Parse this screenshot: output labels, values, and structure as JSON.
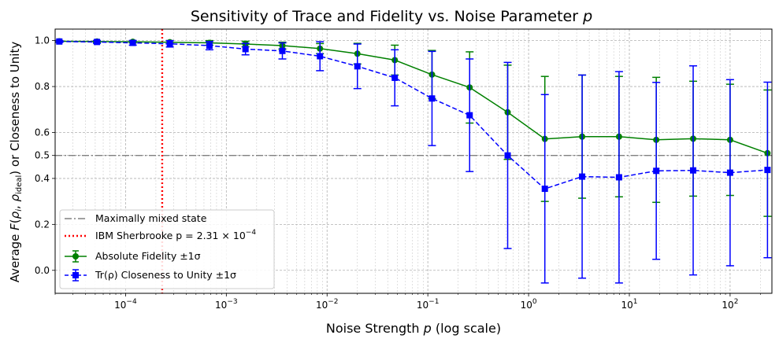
{
  "chart_data": {
    "type": "line",
    "title": "Sensitivity of Trace and Fidelity vs. Noise Parameter p",
    "xlabel": "Noise Strength p (log scale)",
    "ylabel": "Average F(ρi, ρideal) or Closeness to Unity",
    "x_scale": "log",
    "xlim": [
      2e-05,
      260
    ],
    "ylim": [
      -0.1,
      1.05
    ],
    "grid": true,
    "legend_position": "lower-left",
    "x_ticks": [
      {
        "value": 0.0001,
        "base": "10",
        "exp": "−4"
      },
      {
        "value": 0.001,
        "base": "10",
        "exp": "−3"
      },
      {
        "value": 0.01,
        "base": "10",
        "exp": "−2"
      },
      {
        "value": 0.1,
        "base": "10",
        "exp": "−1"
      },
      {
        "value": 1,
        "base": "10",
        "exp": "0"
      },
      {
        "value": 10,
        "base": "10",
        "exp": "1"
      },
      {
        "value": 100,
        "base": "10",
        "exp": "2"
      }
    ],
    "y_ticks": [
      {
        "value": 0.0,
        "label": "0.0"
      },
      {
        "value": 0.2,
        "label": "0.2"
      },
      {
        "value": 0.4,
        "label": "0.4"
      },
      {
        "value": 0.5,
        "label": "0.5"
      },
      {
        "value": 0.6,
        "label": "0.6"
      },
      {
        "value": 0.8,
        "label": "0.8"
      },
      {
        "value": 1.0,
        "label": "1.0"
      }
    ],
    "x": [
      2.2e-05,
      5.2e-05,
      0.000118,
      0.000275,
      0.00068,
      0.00155,
      0.0036,
      0.0085,
      0.02,
      0.047,
      0.11,
      0.26,
      0.62,
      1.45,
      3.4,
      7.9,
      18.5,
      43,
      100,
      235
    ],
    "series": [
      {
        "name": "Absolute Fidelity ±1σ",
        "color": "#008000",
        "marker": "circle",
        "linestyle": "solid",
        "values": [
          0.997,
          0.996,
          0.995,
          0.993,
          0.99,
          0.985,
          0.978,
          0.965,
          0.943,
          0.915,
          0.852,
          0.796,
          0.688,
          0.572,
          0.582,
          0.582,
          0.568,
          0.573,
          0.568,
          0.51
        ],
        "errors": [
          0.003,
          0.004,
          0.005,
          0.007,
          0.01,
          0.012,
          0.015,
          0.022,
          0.045,
          0.065,
          0.105,
          0.155,
          0.205,
          0.272,
          0.268,
          0.262,
          0.272,
          0.25,
          0.242,
          0.275
        ]
      },
      {
        "name": "Tr(ρ) Closeness to Unity ±1σ",
        "color": "#0000ff",
        "marker": "square",
        "linestyle": "dashed",
        "values": [
          0.996,
          0.994,
          0.99,
          0.986,
          0.978,
          0.963,
          0.955,
          0.932,
          0.888,
          0.838,
          0.748,
          0.675,
          0.5,
          0.355,
          0.408,
          0.405,
          0.433,
          0.435,
          0.425,
          0.437
        ],
        "errors": [
          0.004,
          0.006,
          0.01,
          0.014,
          0.018,
          0.025,
          0.035,
          0.063,
          0.097,
          0.122,
          0.205,
          0.245,
          0.405,
          0.41,
          0.442,
          0.46,
          0.385,
          0.455,
          0.405,
          0.382
        ]
      }
    ],
    "reference_lines": [
      {
        "name": "Maximally mixed state",
        "orientation": "horizontal",
        "value": 0.5,
        "color": "#808080",
        "linestyle": "dashdot"
      },
      {
        "name": "IBM Sherbrooke p = 2.31 × 10−4",
        "orientation": "vertical",
        "value": 0.000231,
        "color": "#ff0000",
        "linestyle": "dotted"
      }
    ]
  }
}
